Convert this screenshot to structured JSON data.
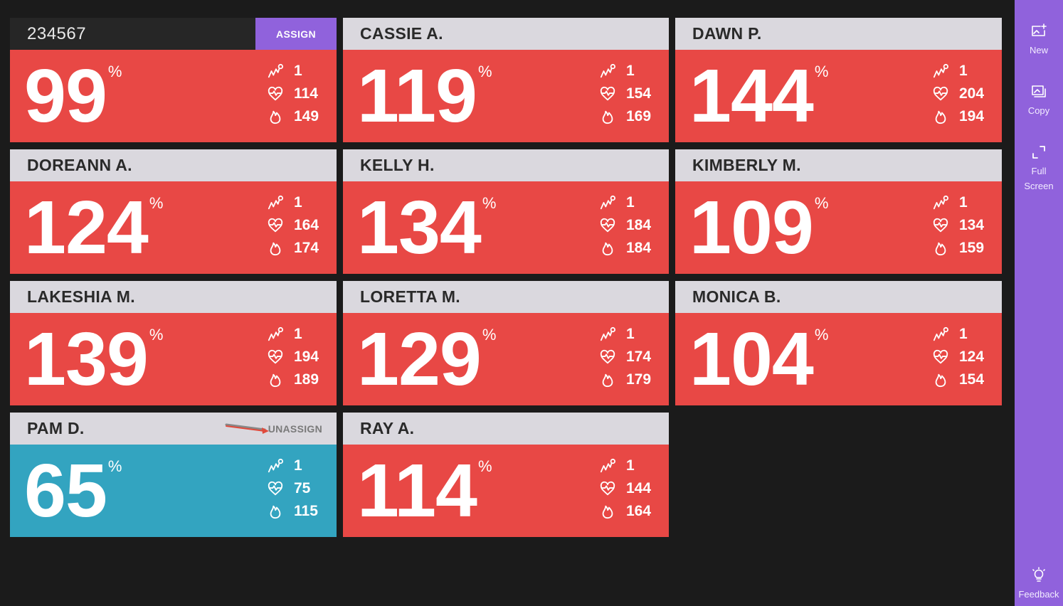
{
  "colors": {
    "red": "#e84845",
    "blue": "#33a4c0",
    "purple": "#9062dc",
    "header": "#dad8de",
    "background": "#1b1b1b"
  },
  "tiles": [
    {
      "name": "234567",
      "header_style": "dark",
      "action": "ASSIGN",
      "percent": "99",
      "sign": "%",
      "stats": [
        "1",
        "114",
        "149"
      ],
      "color": "red"
    },
    {
      "name": "CASSIE A.",
      "percent": "119",
      "sign": "%",
      "stats": [
        "1",
        "154",
        "169"
      ],
      "color": "red"
    },
    {
      "name": "DAWN P.",
      "percent": "144",
      "sign": "%",
      "stats": [
        "1",
        "204",
        "194"
      ],
      "color": "red"
    },
    {
      "name": "DOREANN A.",
      "percent": "124",
      "sign": "%",
      "stats": [
        "1",
        "164",
        "174"
      ],
      "color": "red"
    },
    {
      "name": "KELLY H.",
      "percent": "134",
      "sign": "%",
      "stats": [
        "1",
        "184",
        "184"
      ],
      "color": "red"
    },
    {
      "name": "KIMBERLY M.",
      "percent": "109",
      "sign": "%",
      "stats": [
        "1",
        "134",
        "159"
      ],
      "color": "red"
    },
    {
      "name": "LAKESHIA M.",
      "percent": "139",
      "sign": "%",
      "stats": [
        "1",
        "194",
        "189"
      ],
      "color": "red"
    },
    {
      "name": "LORETTA M.",
      "percent": "129",
      "sign": "%",
      "stats": [
        "1",
        "174",
        "179"
      ],
      "color": "red"
    },
    {
      "name": "MONICA B.",
      "percent": "104",
      "sign": "%",
      "stats": [
        "1",
        "124",
        "154"
      ],
      "color": "red"
    },
    {
      "name": "PAM D.",
      "action": "UNASSIGN",
      "percent": "65",
      "sign": "%",
      "stats": [
        "1",
        "75",
        "115"
      ],
      "color": "blue"
    },
    {
      "name": "RAY A.",
      "percent": "114",
      "sign": "%",
      "stats": [
        "1",
        "144",
        "164"
      ],
      "color": "red"
    }
  ],
  "stat_icons": [
    "activity-points-icon",
    "heart-rate-icon",
    "calories-flame-icon"
  ],
  "sidebar": {
    "new_label": "New",
    "copy_label": "Copy",
    "fullscreen_label_1": "Full",
    "fullscreen_label_2": "Screen",
    "feedback_label": "Feedback"
  }
}
